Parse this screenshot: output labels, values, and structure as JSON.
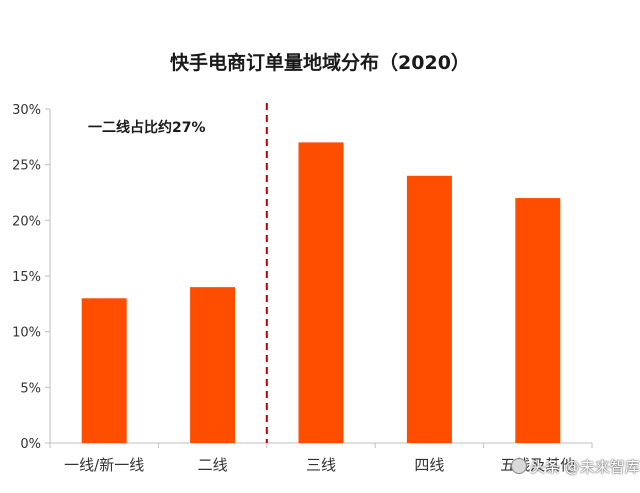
{
  "chart_data": {
    "type": "bar",
    "title": "快手电商订单量地域分布（2020）",
    "categories": [
      "一线/新一线",
      "二线",
      "三线",
      "四线",
      "五线及其他"
    ],
    "values": [
      13,
      14,
      27,
      24,
      22
    ],
    "ylim": [
      0,
      30
    ],
    "yticks": [
      0,
      5,
      10,
      15,
      20,
      25,
      30
    ],
    "ytick_suffix": "%",
    "grid": false,
    "annotation": "一二线占比约27%",
    "divider_after_category": "二线",
    "colors": {
      "bar": "#ff4e00",
      "divider": "#c00000",
      "axis": "#bfbfbf"
    }
  },
  "watermark": {
    "text": "头条 @未来智库",
    "icon": "avatar-icon"
  }
}
